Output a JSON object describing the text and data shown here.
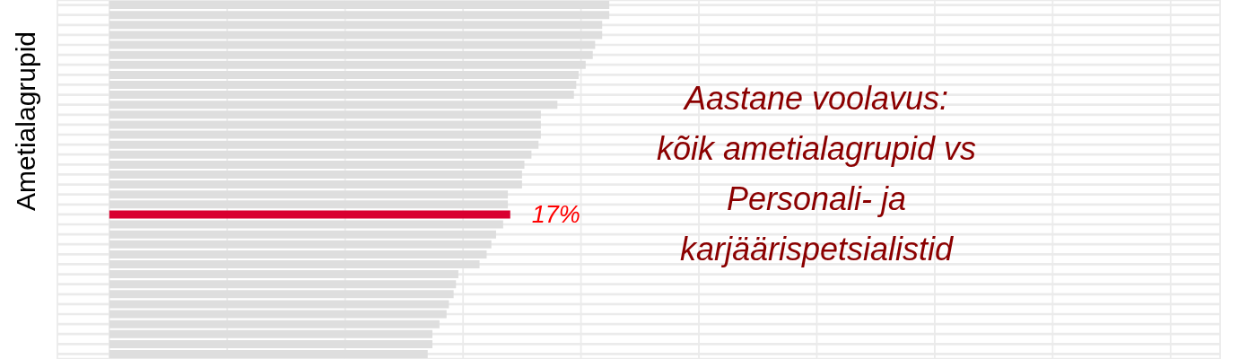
{
  "chart_data": {
    "type": "bar",
    "orientation": "horizontal",
    "title": "Aastane voolavus:\nkõik ametialagrupid vs\nPersonali- ja\nkarjäärispetsialistid",
    "ylabel": "Ametialagrupid",
    "categories": [
      null,
      null,
      null,
      null,
      null,
      null,
      null,
      null,
      null,
      null,
      null,
      null,
      null,
      null,
      null,
      null,
      null,
      null,
      null,
      null,
      null,
      null,
      null,
      null,
      null,
      null,
      null,
      null,
      null,
      null,
      null,
      null,
      null,
      null,
      null,
      null
    ],
    "values": [
      21.2,
      21.2,
      20.9,
      20.9,
      20.6,
      20.5,
      20.2,
      19.9,
      19.8,
      19.7,
      19.0,
      18.3,
      18.3,
      18.3,
      18.2,
      17.9,
      17.6,
      17.5,
      17.5,
      16.9,
      16.9,
      17,
      16.7,
      16.4,
      16.2,
      16.0,
      15.7,
      14.8,
      14.7,
      14.6,
      14.4,
      14.3,
      14.0,
      13.7,
      13.7,
      13.5
    ],
    "colors": [
      "#dedede",
      "#dedede",
      "#dedede",
      "#dedede",
      "#dedede",
      "#dedede",
      "#dedede",
      "#dedede",
      "#dedede",
      "#dedede",
      "#dedede",
      "#dedede",
      "#dedede",
      "#dedede",
      "#dedede",
      "#dedede",
      "#dedede",
      "#dedede",
      "#dedede",
      "#dedede",
      "#dedede",
      "#d90030",
      "#dedede",
      "#dedede",
      "#dedede",
      "#dedede",
      "#dedede",
      "#dedede",
      "#dedede",
      "#dedede",
      "#dedede",
      "#dedede",
      "#dedede",
      "#dedede",
      "#dedede",
      "#dedede"
    ],
    "value_labels": [
      null,
      null,
      null,
      null,
      null,
      null,
      null,
      null,
      null,
      null,
      null,
      null,
      null,
      null,
      null,
      null,
      null,
      null,
      null,
      null,
      null,
      "17%",
      null,
      null,
      null,
      null,
      null,
      null,
      null,
      null,
      null,
      null,
      null,
      null,
      null,
      null
    ],
    "xlim": [
      -2.2,
      47.1
    ],
    "xticks": [
      {
        "value": 0,
        "label": null
      },
      {
        "value": 5,
        "label": null
      },
      {
        "value": 10,
        "label": null
      },
      {
        "value": 15,
        "label": null
      },
      {
        "value": 20,
        "label": null
      },
      {
        "value": 25,
        "label": null
      },
      {
        "value": 30,
        "label": null
      },
      {
        "value": 35,
        "label": null
      },
      {
        "value": 40,
        "label": null
      },
      {
        "value": 45,
        "label": null
      }
    ],
    "tick_labels": false,
    "grid": true
  }
}
